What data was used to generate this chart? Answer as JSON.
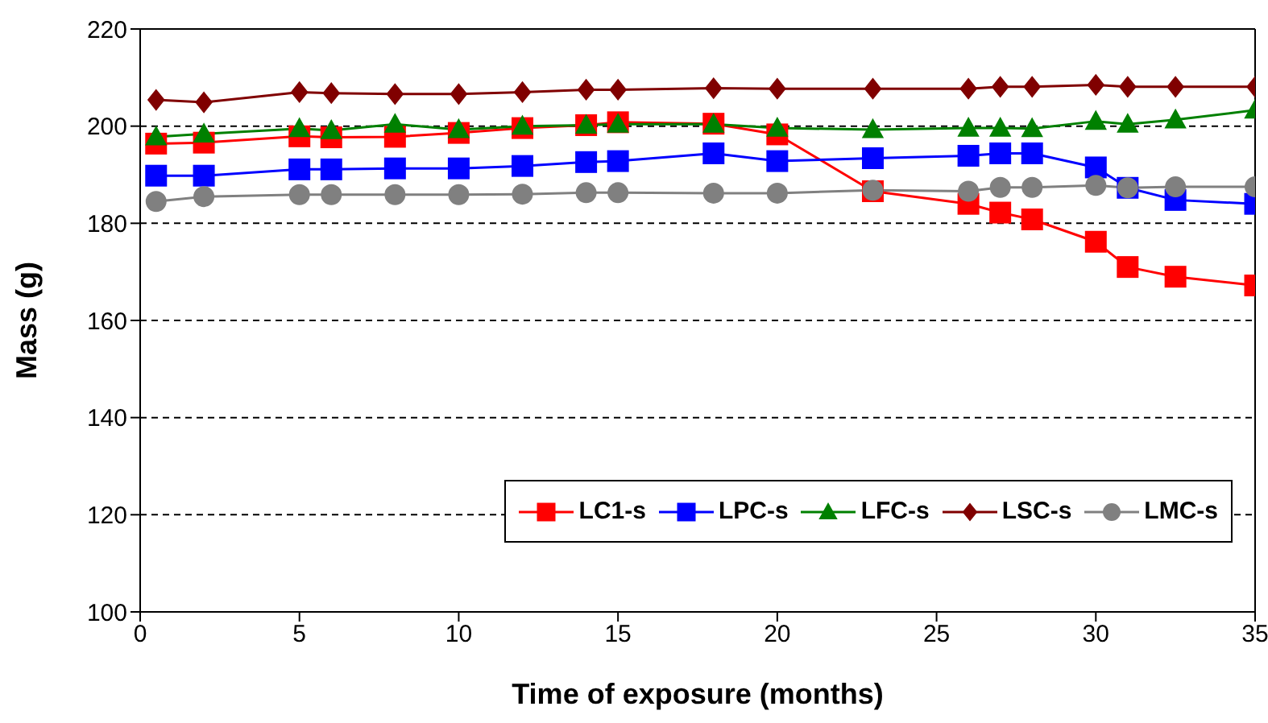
{
  "chart_data": {
    "type": "line",
    "xlabel": "Time of exposure (months)",
    "ylabel": "Mass (g)",
    "x": [
      0.5,
      2,
      5,
      6,
      8,
      10,
      12,
      14,
      15,
      18,
      20,
      23,
      26,
      27,
      28,
      30,
      31,
      32.5,
      35
    ],
    "series": [
      {
        "name": "LC1-s",
        "color": "#ff0000",
        "marker": "square",
        "values": [
          196.4,
          196.6,
          197.9,
          197.7,
          197.8,
          198.6,
          199.6,
          200.2,
          200.8,
          200.5,
          198.3,
          186.6,
          184,
          182.2,
          180.8,
          176.2,
          171,
          169,
          167.2
        ]
      },
      {
        "name": "LPC-s",
        "color": "#0000ff",
        "marker": "square",
        "values": [
          189.8,
          189.8,
          191.1,
          191.1,
          191.3,
          191.3,
          191.8,
          192.6,
          192.8,
          194.4,
          192.8,
          193.4,
          193.9,
          194.4,
          194.4,
          191.5,
          187.3,
          184.8,
          184
        ]
      },
      {
        "name": "LFC-s",
        "color": "#008000",
        "marker": "triangle",
        "values": [
          197.8,
          198.4,
          199.5,
          199.1,
          200.4,
          199.3,
          200,
          200.2,
          200.4,
          200.4,
          199.6,
          199.3,
          199.6,
          199.6,
          199.5,
          201,
          200.4,
          201.3,
          203.3
        ]
      },
      {
        "name": "LSC-s",
        "color": "#800000",
        "marker": "diamond",
        "values": [
          205.4,
          204.9,
          207,
          206.8,
          206.6,
          206.6,
          207,
          207.5,
          207.5,
          207.8,
          207.7,
          207.7,
          207.7,
          208.1,
          208.1,
          208.5,
          208.1,
          208.1,
          208.1
        ]
      },
      {
        "name": "LMC-s",
        "color": "#808080",
        "marker": "circle",
        "values": [
          184.5,
          185.5,
          185.9,
          185.9,
          185.9,
          185.9,
          186,
          186.3,
          186.3,
          186.2,
          186.2,
          186.8,
          186.6,
          187.4,
          187.4,
          187.8,
          187.3,
          187.5,
          187.5
        ]
      }
    ],
    "xlim": [
      0,
      35
    ],
    "xticks": [
      0,
      5,
      10,
      15,
      20,
      25,
      30,
      35
    ],
    "ylim": [
      100,
      220
    ],
    "yticks": [
      100,
      120,
      140,
      160,
      180,
      200,
      220
    ],
    "grid": "y",
    "legend": "bottom right",
    "line_style": "solid"
  }
}
